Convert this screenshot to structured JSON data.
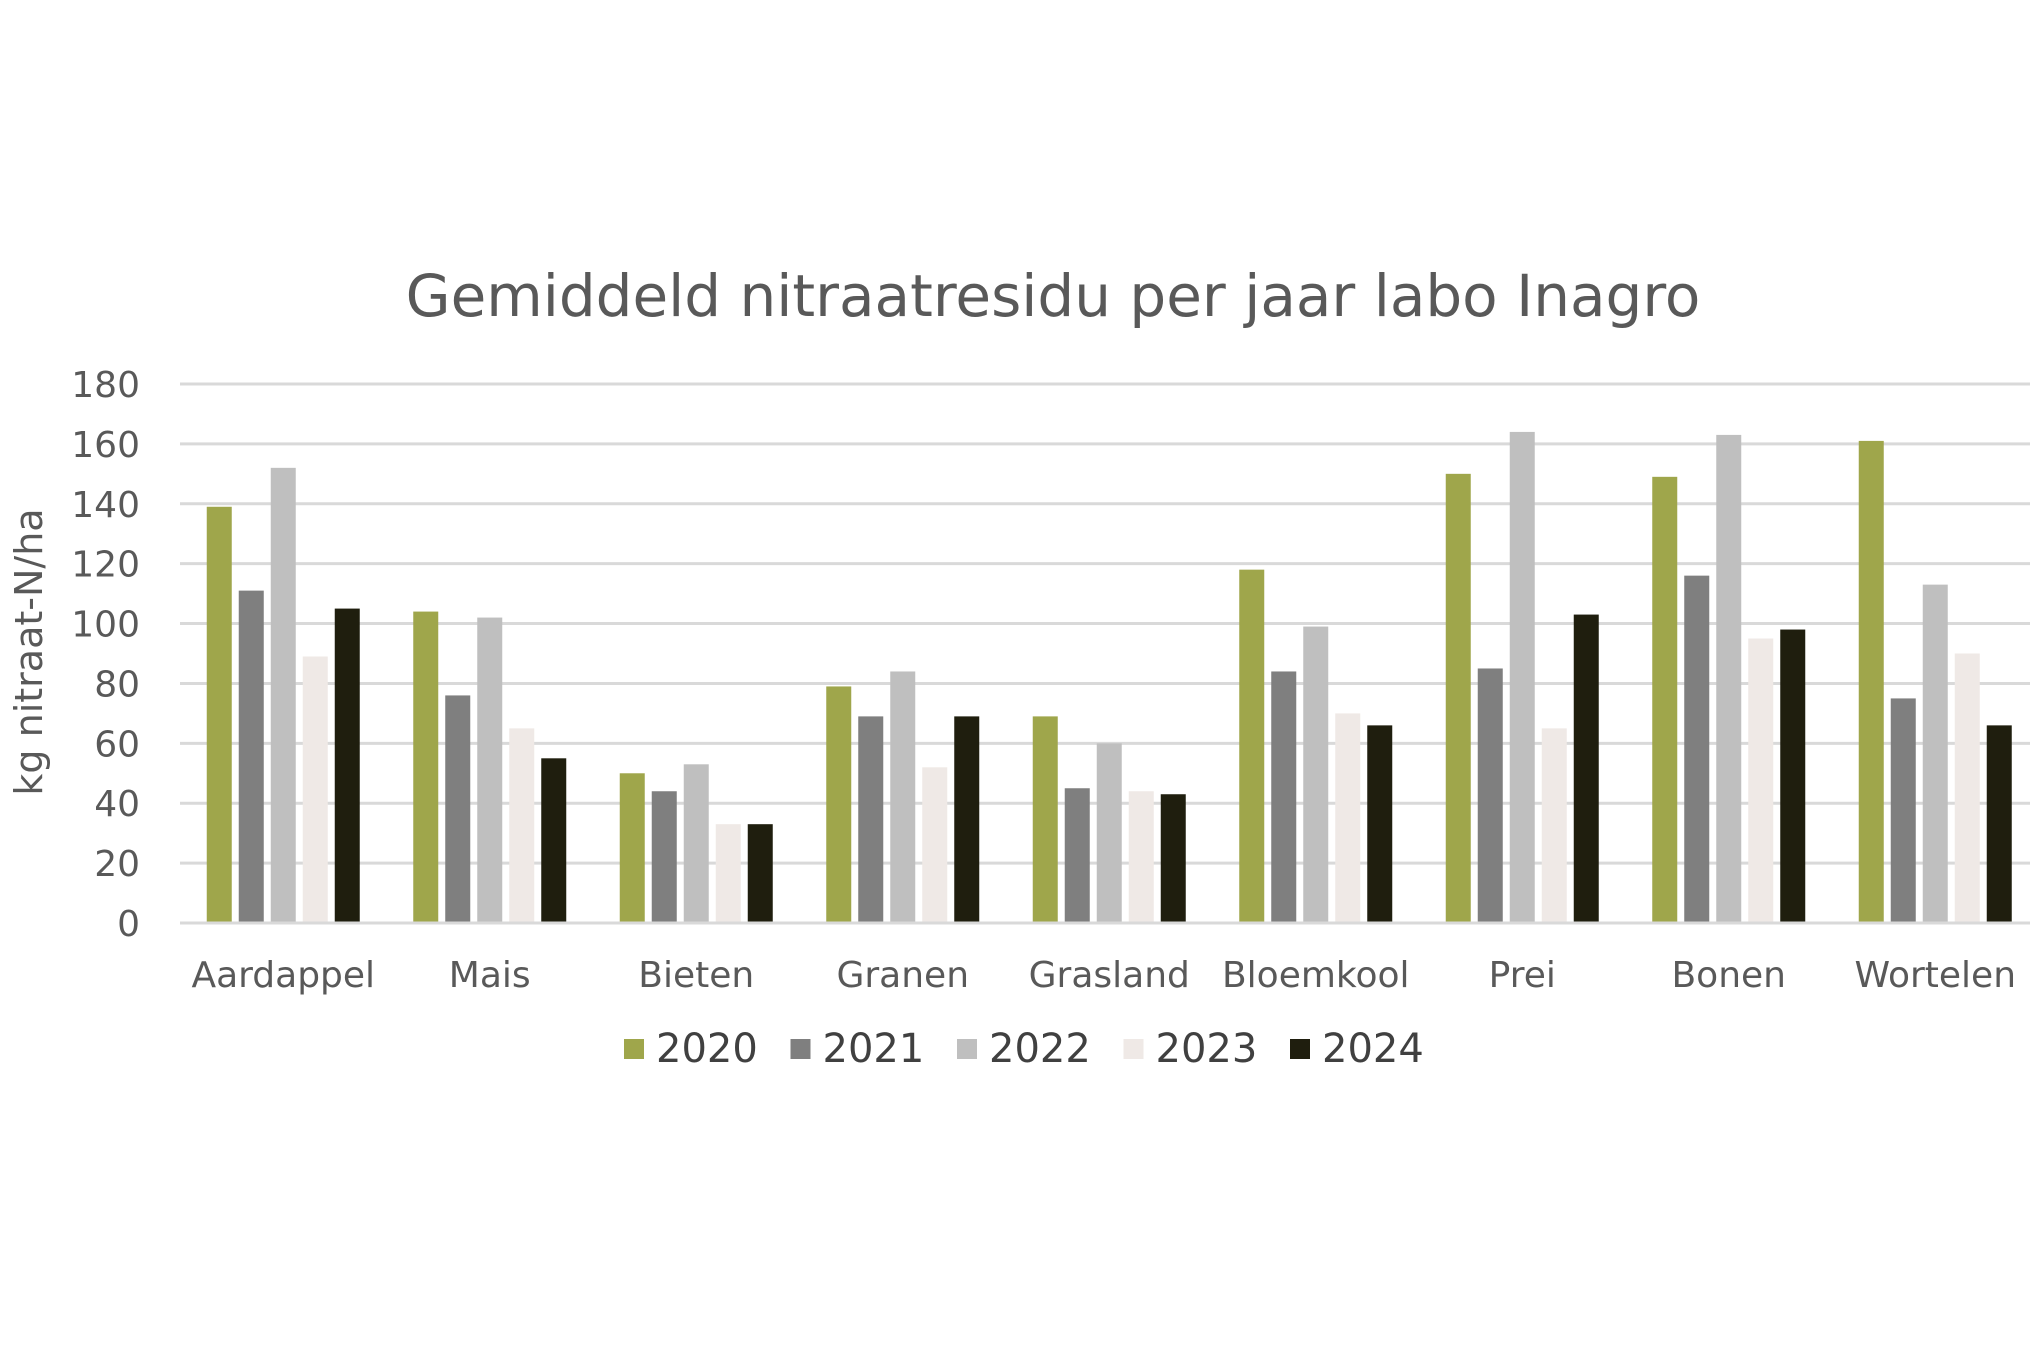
{
  "chart_data": {
    "type": "bar",
    "title": "Gemiddeld nitraatresidu per jaar labo Inagro",
    "xlabel": "",
    "ylabel": "kg nitraat-N/ha",
    "ylim": [
      0,
      180
    ],
    "yticks": [
      0,
      20,
      40,
      60,
      80,
      100,
      120,
      140,
      160,
      180
    ],
    "grid": true,
    "legend_position": "bottom",
    "categories": [
      "Aardappel",
      "Mais",
      "Bieten",
      "Granen",
      "Grasland",
      "Bloemkool",
      "Prei",
      "Bonen",
      "Wortelen"
    ],
    "series": [
      {
        "name": "2020",
        "color": "#9fa64b",
        "values": [
          139,
          104,
          50,
          79,
          69,
          118,
          150,
          149,
          161
        ]
      },
      {
        "name": "2021",
        "color": "#7f7f7f",
        "values": [
          111,
          76,
          44,
          69,
          45,
          84,
          85,
          116,
          75
        ]
      },
      {
        "name": "2022",
        "color": "#bfbfbf",
        "values": [
          152,
          102,
          53,
          84,
          60,
          99,
          164,
          163,
          113
        ]
      },
      {
        "name": "2023",
        "color": "#efe9e6",
        "values": [
          89,
          65,
          33,
          52,
          44,
          70,
          65,
          95,
          90
        ]
      },
      {
        "name": "2024",
        "color": "#1f1e0e",
        "values": [
          105,
          55,
          33,
          69,
          43,
          66,
          103,
          98,
          66
        ]
      }
    ]
  }
}
